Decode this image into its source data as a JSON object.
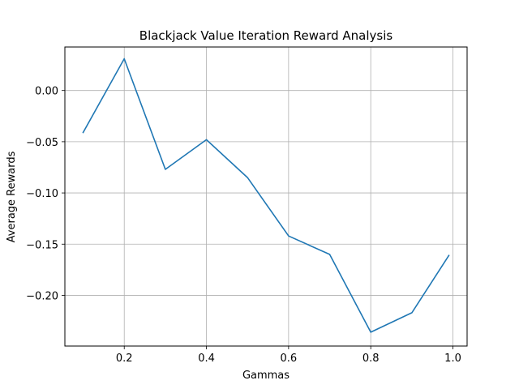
{
  "chart_data": {
    "type": "line",
    "title": "Blackjack Value Iteration Reward Analysis",
    "xlabel": "Gammas",
    "ylabel": "Average Rewards",
    "xlim": [
      0.0555,
      1.0345
    ],
    "ylim": [
      -0.2495,
      0.0425
    ],
    "xticks": [
      0.2,
      0.4,
      0.6,
      0.8,
      1.0
    ],
    "xtick_labels": [
      "0.2",
      "0.4",
      "0.6",
      "0.8",
      "1.0"
    ],
    "yticks": [
      0.0,
      -0.05,
      -0.1,
      -0.15,
      -0.2
    ],
    "ytick_labels": [
      "0.00",
      "−0.05",
      "−0.10",
      "−0.15",
      "−0.20"
    ],
    "grid": true,
    "series": [
      {
        "color": "#1f77b4",
        "x": [
          0.1,
          0.2,
          0.3,
          0.4,
          0.5,
          0.6,
          0.7,
          0.8,
          0.9,
          0.99
        ],
        "y": [
          -0.041,
          0.031,
          -0.077,
          -0.048,
          -0.085,
          -0.142,
          -0.16,
          -0.236,
          -0.217,
          -0.161
        ]
      }
    ]
  }
}
